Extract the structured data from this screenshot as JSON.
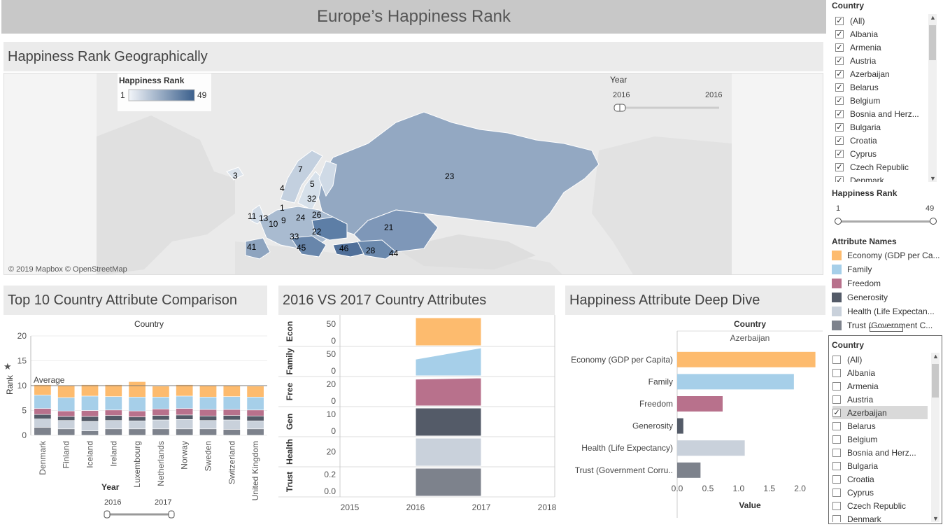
{
  "dashboard_title": "Europe’s Happiness Rank",
  "map": {
    "title": "Happiness Rank Geographically",
    "legend_title": "Happiness Rank",
    "legend_min": "1",
    "legend_max": "49",
    "year_label": "Year",
    "year_from": "2016",
    "year_to": "2016",
    "attribution": "© 2019 Mapbox © OpenStreetMap",
    "rank_labels": [
      {
        "text": "3"
      },
      {
        "text": "7"
      },
      {
        "text": "4"
      },
      {
        "text": "5"
      },
      {
        "text": "32"
      },
      {
        "text": "23"
      },
      {
        "text": "26"
      },
      {
        "text": "24"
      },
      {
        "text": "9"
      },
      {
        "text": "13"
      },
      {
        "text": "10"
      },
      {
        "text": "1"
      },
      {
        "text": "11"
      },
      {
        "text": "22"
      },
      {
        "text": "21"
      },
      {
        "text": "33"
      },
      {
        "text": "45"
      },
      {
        "text": "46"
      },
      {
        "text": "28"
      },
      {
        "text": "44"
      },
      {
        "text": "41"
      }
    ]
  },
  "top10": {
    "title": "Top 10 Country Attribute Comparison",
    "header": "Country",
    "ylabel": "Rank",
    "average_label": "Average",
    "year_label": "Year",
    "year_from": "2016",
    "year_to": "2017"
  },
  "vs": {
    "title": "2016 VS 2017 Country Attributes"
  },
  "deep": {
    "title": "Happiness Attribute Deep Dive",
    "header": "Country",
    "country": "Azerbaijan",
    "xlabel": "Value"
  },
  "sidebar": {
    "country_filter_title": "Country",
    "country_items": [
      {
        "label": "(All)",
        "checked": true
      },
      {
        "label": "Albania",
        "checked": true
      },
      {
        "label": "Armenia",
        "checked": true
      },
      {
        "label": "Austria",
        "checked": true
      },
      {
        "label": "Azerbaijan",
        "checked": true
      },
      {
        "label": "Belarus",
        "checked": true
      },
      {
        "label": "Belgium",
        "checked": true
      },
      {
        "label": "Bosnia and Herz...",
        "checked": true
      },
      {
        "label": "Bulgaria",
        "checked": true
      },
      {
        "label": "Croatia",
        "checked": true
      },
      {
        "label": "Cyprus",
        "checked": true
      },
      {
        "label": "Czech Republic",
        "checked": true
      },
      {
        "label": "Denmark",
        "checked": true
      }
    ],
    "rank_filter_title": "Happiness Rank",
    "rank_min": "1",
    "rank_max": "49",
    "attr_title": "Attribute Names",
    "attributes": [
      {
        "label": "Economy (GDP per Ca...",
        "color": "#fdbb6e"
      },
      {
        "label": "Family",
        "color": "#a6cfe9"
      },
      {
        "label": "Freedom",
        "color": "#b8718c"
      },
      {
        "label": "Generosity",
        "color": "#545b68"
      },
      {
        "label": "Health (Life Expectan...",
        "color": "#c9d1db"
      },
      {
        "label": "Trust (Government C...",
        "color": "#7d828c"
      }
    ],
    "country2_title": "Country",
    "country2_items": [
      {
        "label": "(All)",
        "checked": false
      },
      {
        "label": "Albania",
        "checked": false
      },
      {
        "label": "Armenia",
        "checked": false
      },
      {
        "label": "Austria",
        "checked": false
      },
      {
        "label": "Azerbaijan",
        "checked": true
      },
      {
        "label": "Belarus",
        "checked": false
      },
      {
        "label": "Belgium",
        "checked": false
      },
      {
        "label": "Bosnia and Herz...",
        "checked": false
      },
      {
        "label": "Bulgaria",
        "checked": false
      },
      {
        "label": "Croatia",
        "checked": false
      },
      {
        "label": "Cyprus",
        "checked": false
      },
      {
        "label": "Czech Republic",
        "checked": false
      },
      {
        "label": "Denmark",
        "checked": false
      }
    ]
  },
  "chart_data": [
    {
      "type": "bar",
      "stacked": true,
      "title": "Top 10 Country Attribute Comparison",
      "header": "Country",
      "ylabel": "Rank",
      "ylim": [
        0,
        20
      ],
      "yticks": [
        "0",
        "5",
        "10",
        "15",
        "20"
      ],
      "reference_line": {
        "label": "Average",
        "value": 10
      },
      "categories": [
        "Denmark",
        "Finland",
        "Iceland",
        "Ireland",
        "Luxembourg",
        "Netherlands",
        "Norway",
        "Sweden",
        "Switzerland",
        "United Kingdom"
      ],
      "series": [
        {
          "name": "Trust (Government C...",
          "color": "#7d828c",
          "values": [
            1.6,
            1.3,
            0.9,
            1.3,
            1.3,
            1.3,
            1.3,
            1.3,
            1.2,
            1.3
          ]
        },
        {
          "name": "Health (Life Expectan...",
          "color": "#c9d1db",
          "values": [
            1.7,
            1.7,
            1.9,
            1.7,
            1.6,
            1.8,
            1.9,
            1.7,
            1.9,
            1.6
          ]
        },
        {
          "name": "Generosity",
          "color": "#545b68",
          "values": [
            0.9,
            0.8,
            1.0,
            1.0,
            0.8,
            0.9,
            0.9,
            0.9,
            0.9,
            1.0
          ]
        },
        {
          "name": "Freedom",
          "color": "#b8718c",
          "values": [
            1.2,
            1.1,
            1.2,
            1.1,
            1.2,
            1.3,
            1.3,
            1.3,
            1.2,
            1.2
          ]
        },
        {
          "name": "Family",
          "color": "#a6cfe9",
          "values": [
            2.7,
            2.7,
            2.9,
            2.7,
            2.8,
            2.4,
            2.5,
            2.5,
            2.6,
            2.6
          ]
        },
        {
          "name": "Economy (GDP per Ca...",
          "color": "#fdbb6e",
          "values": [
            2.1,
            2.4,
            2.3,
            2.4,
            3.1,
            2.2,
            2.3,
            2.3,
            2.2,
            2.2
          ]
        }
      ]
    },
    {
      "type": "area",
      "title": "2016 VS 2017 Country Attributes",
      "x": [
        "2015",
        "2016",
        "2017",
        "2018"
      ],
      "rows": [
        {
          "name": "Econ",
          "color": "#fdbb6e",
          "yticks": [
            "50",
            "0"
          ],
          "ymax": 60,
          "from": 62,
          "to": 60
        },
        {
          "name": "Family",
          "color": "#a6cfe9",
          "yticks": [
            "50",
            "0"
          ],
          "ymax": 60,
          "from": 35,
          "to": 60
        },
        {
          "name": "Free",
          "color": "#b8718c",
          "yticks": [
            "20",
            "0"
          ],
          "ymax": 23,
          "from": 22,
          "to": 23
        },
        {
          "name": "Gen",
          "color": "#545b68",
          "yticks": [
            "10",
            "0"
          ],
          "ymax": 12,
          "from": 12,
          "to": 12
        },
        {
          "name": "Health",
          "color": "#c9d1db",
          "yticks": [
            "20"
          ],
          "ymax": 30,
          "from": 30,
          "to": 30
        },
        {
          "name": "Trust",
          "color": "#7d828c",
          "yticks": [
            "0.2",
            "0.0"
          ],
          "ymax": 0.3,
          "from": 0.3,
          "to": 0.3
        }
      ]
    },
    {
      "type": "bar",
      "orientation": "horizontal",
      "title": "Happiness Attribute Deep Dive",
      "header": "Country",
      "subheader": "Azerbaijan",
      "xlabel": "Value",
      "xlim": [
        0,
        2.3
      ],
      "xticks": [
        "0.0",
        "0.5",
        "1.0",
        "1.5",
        "2.0"
      ],
      "categories": [
        "Economy (GDP per Capita)",
        "Family",
        "Freedom",
        "Generosity",
        "Health (Life Expectancy)",
        "Trust (Government Corru.."
      ],
      "values": [
        2.25,
        1.9,
        0.74,
        0.1,
        1.1,
        0.38
      ],
      "colors": [
        "#fdbb6e",
        "#a6cfe9",
        "#b8718c",
        "#545b68",
        "#c9d1db",
        "#7d828c"
      ]
    }
  ]
}
